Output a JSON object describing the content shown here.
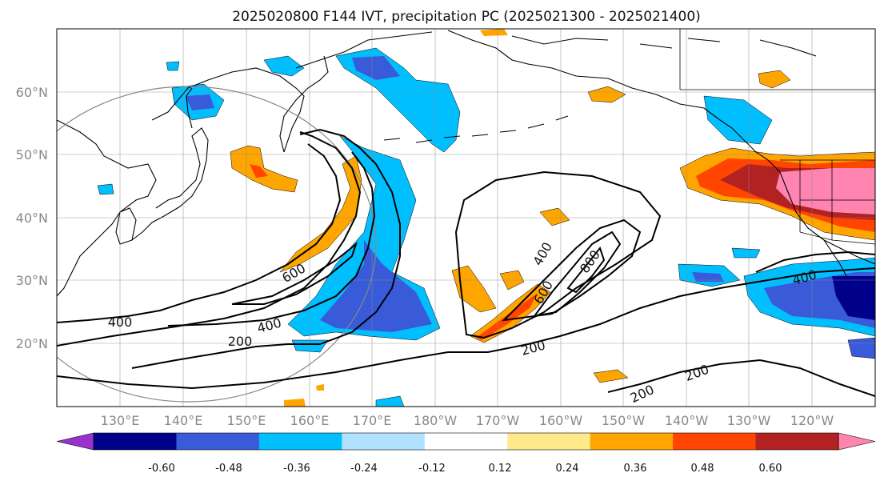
{
  "title": "2025020800 F144 IVT, precipitation PC (2025021300 - 2025021400)",
  "map": {
    "lat_labels": [
      "60°N",
      "50°N",
      "40°N",
      "30°N",
      "20°N"
    ],
    "lon_labels": [
      "130°E",
      "140°E",
      "150°E",
      "160°E",
      "170°E",
      "180°W",
      "170°W",
      "160°W",
      "150°W",
      "140°W",
      "130°W",
      "120°W"
    ]
  },
  "ivt_contours": {
    "labels": [
      "400",
      "600",
      "400",
      "200",
      "400",
      "600",
      "800",
      "200",
      "200",
      "200",
      "400"
    ],
    "line_color": "#000000"
  },
  "colorbar": {
    "colors": [
      "#9932cc",
      "#00008b",
      "#3a5bd9",
      "#00bfff",
      "#b0e2ff",
      "#ffffff",
      "#ffe98a",
      "#ffa500",
      "#ff4500",
      "#b22222",
      "#ff85b0"
    ],
    "tick_labels": [
      "-0.60",
      "-0.48",
      "-0.36",
      "-0.24",
      "-0.12",
      "0.12",
      "0.24",
      "0.36",
      "0.48",
      "0.60"
    ],
    "extend": "both"
  }
}
